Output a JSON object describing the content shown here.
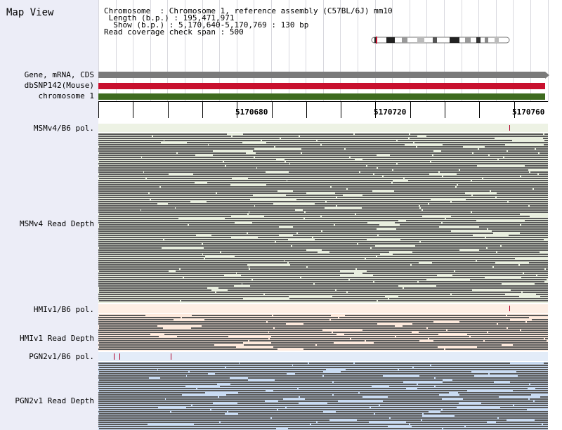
{
  "app": {
    "title": "Map View"
  },
  "info": {
    "chromosome_key": "Chromosome",
    "chromosome_val": ": Chromosome 1, reference assembly (C57BL/6J) mm10",
    "length_key": "Length (b.p.)",
    "length_val": ": 195,471,971",
    "show_key": "Show (b.p.)",
    "show_val": ": 5,170,640-5,170,769 : 130 bp",
    "coverage_key": "Read coverage check span",
    "coverage_val": ": 500"
  },
  "tracks": {
    "gene": {
      "label": "Gene, mRNA, CDS",
      "color": "#7a7a7a"
    },
    "snp": {
      "label": "dbSNP142(Mouse)",
      "color": "#c8102e"
    },
    "chrom": {
      "label": "chromosome 1",
      "color": "#3e6b1f"
    }
  },
  "ruler": {
    "labels": [
      "5170680",
      "5170720",
      "5170760"
    ]
  },
  "panels": {
    "msm_pol": {
      "label": "MSMv4/B6 pol.",
      "color": "#edf2e4"
    },
    "msm_depth": {
      "label": "MSMv4 Read Depth",
      "color": "#e8eede"
    },
    "hmi_pol": {
      "label": "HMIv1/B6 pol.",
      "color": "#fdeee4"
    },
    "hmi_depth": {
      "label": "HMIv1 Read Depth",
      "color": "#fde9dc"
    },
    "pgn_pol": {
      "label": "PGN2v1/B6 pol.",
      "color": "#e3ecf8"
    },
    "pgn_depth": {
      "label": "PGN2v1 Read Depth",
      "color": "#c9dbf2"
    }
  },
  "colors": {
    "read": "#585858",
    "sidebar": "#ecedf7",
    "variant": "#b0002a"
  }
}
